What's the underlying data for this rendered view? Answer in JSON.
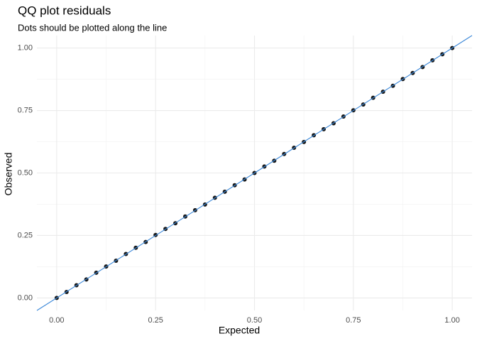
{
  "chart_data": {
    "type": "scatter",
    "title": "QQ plot residuals",
    "subtitle": "Dots should be plotted along the line",
    "x_label": "Expected",
    "y_label": "Observed",
    "x": [
      0,
      0.025,
      0.05,
      0.075,
      0.1,
      0.125,
      0.15,
      0.175,
      0.2,
      0.225,
      0.25,
      0.275,
      0.3,
      0.325,
      0.35,
      0.375,
      0.4,
      0.425,
      0.45,
      0.475,
      0.5,
      0.525,
      0.55,
      0.575,
      0.6,
      0.625,
      0.65,
      0.675,
      0.7,
      0.725,
      0.75,
      0.775,
      0.8,
      0.825,
      0.85,
      0.875,
      0.9,
      0.925,
      0.95,
      0.975,
      1
    ],
    "series": [
      {
        "name": "Residuals",
        "color": "#1a1a1a",
        "values": [
          0,
          0.024,
          0.051,
          0.074,
          0.101,
          0.126,
          0.149,
          0.176,
          0.201,
          0.224,
          0.252,
          0.276,
          0.299,
          0.326,
          0.351,
          0.374,
          0.401,
          0.425,
          0.451,
          0.474,
          0.5,
          0.526,
          0.549,
          0.576,
          0.601,
          0.624,
          0.651,
          0.675,
          0.699,
          0.726,
          0.751,
          0.774,
          0.801,
          0.825,
          0.849,
          0.876,
          0.9,
          0.924,
          0.951,
          0.975,
          1
        ]
      }
    ],
    "reference_line": {
      "slope": 1,
      "intercept": 0,
      "color": "#3a87d8"
    },
    "xlim": [
      -0.05,
      1.05
    ],
    "ylim": [
      -0.05,
      1.05
    ],
    "xticks": [
      {
        "value": 0,
        "label": "0.00"
      },
      {
        "value": 0.25,
        "label": "0.25"
      },
      {
        "value": 0.5,
        "label": "0.50"
      },
      {
        "value": 0.75,
        "label": "0.75"
      },
      {
        "value": 1,
        "label": "1.00"
      }
    ],
    "yticks": [
      {
        "value": 0,
        "label": "0.00"
      },
      {
        "value": 0.25,
        "label": "0.25"
      },
      {
        "value": 0.5,
        "label": "0.50"
      },
      {
        "value": 0.75,
        "label": "0.75"
      },
      {
        "value": 1,
        "label": "1.00"
      }
    ],
    "xminor": [
      0.125,
      0.375,
      0.625,
      0.875
    ],
    "yminor": [
      0.125,
      0.375,
      0.625,
      0.875
    ],
    "grid": true
  }
}
